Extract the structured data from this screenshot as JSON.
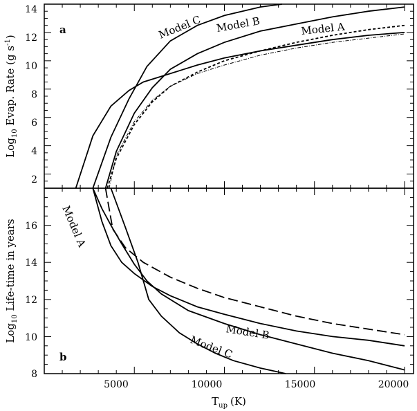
{
  "chart_data": {
    "type": "line",
    "x_axis": {
      "label": "T",
      "label_subscript": "up",
      "label_unit": "(K)",
      "range": [
        0,
        20500
      ],
      "tick_values": [
        5000,
        10000,
        15000,
        20000
      ],
      "tick_labels": [
        "5000",
        "10000",
        "15000",
        "20000"
      ]
    },
    "panels": [
      {
        "id": "a",
        "panel_label": "a",
        "ylabel_prefix": "Log",
        "ylabel_subscript": "10",
        "ylabel_rest": " Evap. Rate  (g s",
        "ylabel_sup": "-1",
        "ylabel_end": ")",
        "ylim": [
          1,
          14
        ],
        "tick_values": [
          2,
          4,
          6,
          8,
          10,
          12,
          14
        ],
        "tick_labels": [
          "2",
          "4",
          "6",
          "8",
          "10",
          "12",
          "14"
        ],
        "annotations": [
          "Model C",
          "Model B",
          "Model A"
        ],
        "series": [
          {
            "name": "Model C",
            "style": "solid",
            "x": [
              2700,
              3700,
              4700,
              5700,
              7000,
              8500,
              10000,
              12000,
              13200
            ],
            "y": [
              1.0,
              4.6,
              7.3,
              9.6,
              11.4,
              12.5,
              13.2,
              13.8,
              14.0
            ]
          },
          {
            "name": "Model B",
            "style": "solid",
            "x": [
              3400,
              4000,
              5000,
              6000,
              7000,
              8500,
              10000,
              12000,
              14000,
              16000,
              18000,
              20000
            ],
            "y": [
              1.0,
              3.6,
              6.3,
              8.1,
              9.4,
              10.5,
              11.3,
              12.1,
              12.6,
              13.1,
              13.5,
              13.8
            ]
          },
          {
            "name": "Model A",
            "style": "solid",
            "x": [
              1750,
              2700,
              3700,
              4700,
              5500,
              6500,
              7500,
              8500,
              10000,
              12000,
              14000,
              16000,
              18000,
              20000
            ],
            "y": [
              1.0,
              4.7,
              6.8,
              7.9,
              8.5,
              8.9,
              9.3,
              9.7,
              10.2,
              10.7,
              11.1,
              11.5,
              11.8,
              12.0
            ]
          },
          {
            "name": "",
            "style": "dashed",
            "x": [
              3500,
              4000,
              5000,
              6000,
              7000,
              8500,
              10000,
              12000,
              14000,
              16000,
              18000,
              20000
            ],
            "y": [
              1.0,
              3.1,
              5.5,
              7.1,
              8.2,
              9.2,
              10.0,
              10.7,
              11.3,
              11.8,
              12.2,
              12.5
            ]
          },
          {
            "name": "",
            "style": "dashdot",
            "x": [
              3600,
              4000,
              5000,
              6000,
              7000,
              8500,
              10000,
              12000,
              14000,
              16000,
              18000,
              20000
            ],
            "y": [
              1.0,
              3.3,
              5.7,
              7.2,
              8.2,
              9.1,
              9.7,
              10.4,
              10.9,
              11.3,
              11.6,
              11.9
            ]
          }
        ]
      },
      {
        "id": "b",
        "panel_label": "b",
        "ylabel_prefix": "Log",
        "ylabel_subscript": "10",
        "ylabel_rest": " Life-time in years",
        "ylim": [
          8,
          18
        ],
        "tick_values": [
          8,
          10,
          12,
          14,
          16
        ],
        "tick_labels": [
          "8",
          "10",
          "12",
          "14",
          "16"
        ],
        "annotations": [
          "Model A",
          "Model B",
          "Model C"
        ],
        "series": [
          {
            "name": "Model A",
            "style": "solid",
            "x": [
              2700,
              3200,
              3700,
              4300,
              5000,
              6000,
              7000,
              8500,
              10000,
              12000,
              14000,
              16000,
              18000,
              20000
            ],
            "y": [
              18.0,
              16.2,
              14.9,
              14.0,
              13.4,
              12.7,
              12.2,
              11.6,
              11.2,
              10.7,
              10.3,
              10.0,
              9.8,
              9.5
            ]
          },
          {
            "name": "",
            "style": "longdash",
            "x": [
              3400,
              3800,
              4500,
              5500,
              7000,
              8500,
              10000,
              12000,
              14000,
              16000,
              18000,
              20000
            ],
            "y": [
              18.0,
              15.8,
              14.8,
              14.0,
              13.2,
              12.6,
              12.1,
              11.6,
              11.1,
              10.7,
              10.4,
              10.1
            ]
          },
          {
            "name": "Model B",
            "style": "solid",
            "x": [
              2700,
              3200,
              3700,
              4300,
              5000,
              5700,
              6500,
              8000,
              10000,
              12000,
              14000,
              16000,
              18000,
              20000
            ],
            "y": [
              18.0,
              16.9,
              16.0,
              15.0,
              13.9,
              13.0,
              12.3,
              11.4,
              10.7,
              10.1,
              9.6,
              9.1,
              8.7,
              8.2
            ]
          },
          {
            "name": "Model C",
            "style": "solid",
            "x": [
              3700,
              4500,
              5200,
              5800,
              6500,
              7500,
              8500,
              9500,
              10500,
              12000,
              13400
            ],
            "y": [
              18.0,
              15.9,
              14.0,
              12.0,
              11.1,
              10.2,
              9.6,
              9.1,
              8.7,
              8.3,
              8.0
            ]
          }
        ]
      }
    ]
  }
}
